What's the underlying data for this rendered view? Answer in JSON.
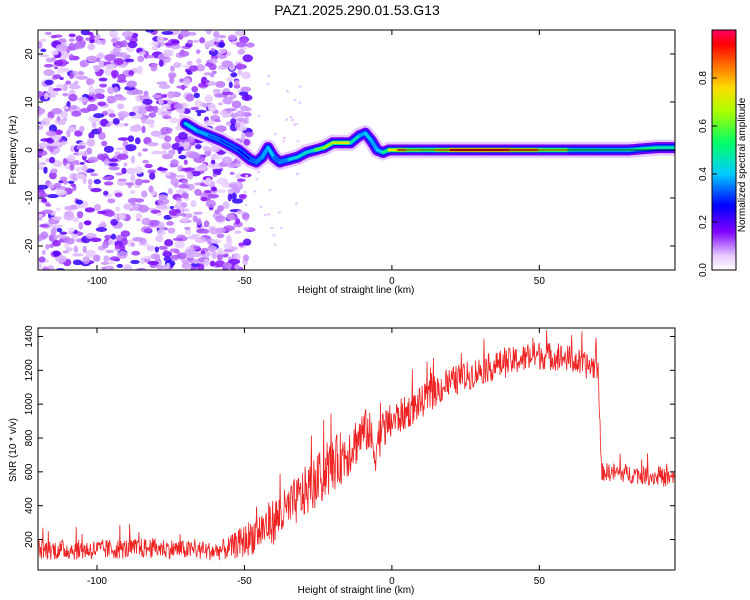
{
  "title": "PAZ1.2025.290.01.53.G13",
  "chart_data": [
    {
      "type": "heatmap",
      "title": "PAZ1.2025.290.01.53.G13",
      "xlabel": "Height of straight line (km)",
      "ylabel": "Frequency (Hz)",
      "xlim": [
        -120,
        96
      ],
      "ylim": [
        -25,
        25
      ],
      "xticks": [
        -100,
        -50,
        0,
        50
      ],
      "yticks": [
        -20,
        -10,
        0,
        10,
        20
      ],
      "xtick_labels": [
        "-100",
        "-50",
        "0",
        "50"
      ],
      "ytick_labels": [
        "-20",
        "-10",
        "0",
        "10",
        "20"
      ],
      "colorbar": {
        "label": "Normalized spectral amplitude",
        "range": [
          0,
          1
        ],
        "ticks": [
          0.0,
          0.2,
          0.4,
          0.6,
          0.8
        ],
        "tick_labels": [
          "0.0",
          "0.2",
          "0.4",
          "0.6",
          "0.8"
        ]
      },
      "noise_region_km": [
        -120,
        -48
      ],
      "ridge": {
        "x_km": [
          -70,
          -66,
          -62,
          -58,
          -55,
          -52,
          -50,
          -48,
          -46,
          -44,
          -42,
          -40,
          -38,
          -35,
          -32,
          -29,
          -26,
          -23,
          -20,
          -17,
          -14,
          -11,
          -9,
          -7,
          -5,
          -3,
          -1,
          2,
          5,
          10,
          15,
          20,
          30,
          40,
          50,
          60,
          70,
          80,
          90,
          96
        ],
        "freq_hz": [
          5.5,
          4,
          3,
          2,
          1,
          0,
          -1,
          -2,
          -2.5,
          -1.5,
          0.5,
          -1.5,
          -2.5,
          -2,
          -1.5,
          -0.5,
          0,
          0.5,
          1.5,
          1.5,
          1.5,
          3,
          3.5,
          2,
          0,
          -0.5,
          0,
          0,
          0,
          0,
          0,
          0,
          0,
          0,
          0,
          0,
          0,
          0,
          0.5,
          0.5
        ],
        "amplitude": [
          0.45,
          0.4,
          0.35,
          0.3,
          0.3,
          0.3,
          0.25,
          0.25,
          0.4,
          0.3,
          0.45,
          0.35,
          0.3,
          0.4,
          0.45,
          0.45,
          0.45,
          0.75,
          0.55,
          0.85,
          0.6,
          0.35,
          0.4,
          0.4,
          0.35,
          0.45,
          0.6,
          0.92,
          0.75,
          0.6,
          0.65,
          0.95,
          0.97,
          0.95,
          0.8,
          0.55,
          0.45,
          0.5,
          0.5,
          0.45
        ]
      }
    },
    {
      "type": "line",
      "xlabel": "Height of straight line (km)",
      "ylabel": "SNR (10 * v/v)",
      "xlim": [
        -120,
        96
      ],
      "ylim": [
        20,
        1450
      ],
      "xticks": [
        -100,
        -50,
        0,
        50
      ],
      "yticks": [
        200,
        400,
        600,
        800,
        1000,
        1200,
        1400
      ],
      "xtick_labels": [
        "-100",
        "-50",
        "0",
        "50"
      ],
      "ytick_labels": [
        "200",
        "400",
        "600",
        "800",
        "1000",
        "1200",
        "1400"
      ],
      "series": [
        {
          "name": "SNR",
          "color": "#ee2222",
          "x": [
            -120,
            -100,
            -90,
            -80,
            -70,
            -60,
            -55,
            -50,
            -45,
            -40,
            -35,
            -30,
            -25,
            -20,
            -15,
            -10,
            -8,
            -6,
            -4,
            0,
            5,
            10,
            15,
            20,
            25,
            30,
            40,
            50,
            60,
            65,
            70,
            71,
            72,
            80,
            90,
            96
          ],
          "values": [
            140,
            140,
            145,
            150,
            140,
            130,
            150,
            190,
            250,
            310,
            380,
            470,
            550,
            640,
            720,
            830,
            850,
            720,
            820,
            900,
            950,
            1010,
            1080,
            1130,
            1160,
            1200,
            1250,
            1290,
            1270,
            1230,
            1220,
            600,
            600,
            590,
            570,
            560
          ],
          "noise_amplitude": [
            60,
            60,
            60,
            60,
            55,
            55,
            70,
            100,
            120,
            140,
            140,
            150,
            160,
            160,
            160,
            140,
            130,
            150,
            130,
            110,
            100,
            95,
            95,
            90,
            90,
            85,
            85,
            85,
            80,
            80,
            80,
            55,
            55,
            55,
            55,
            55
          ]
        }
      ]
    }
  ]
}
